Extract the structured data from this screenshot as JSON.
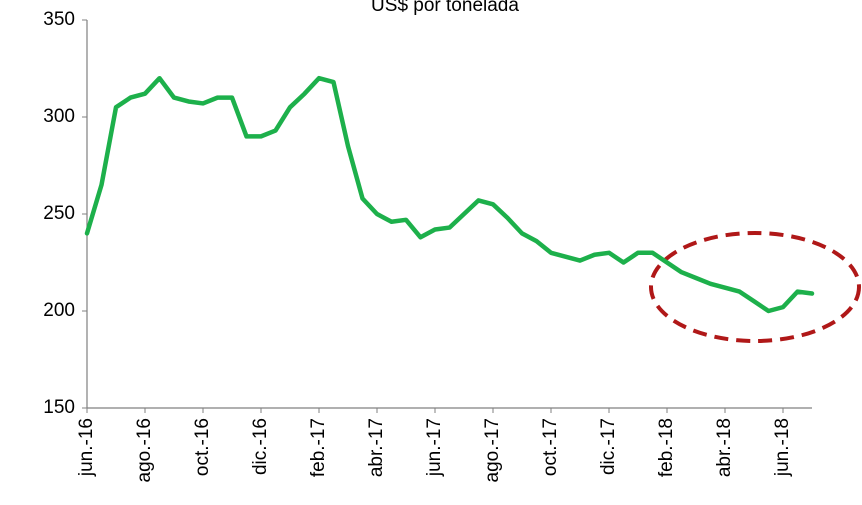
{
  "chart_data": {
    "type": "line",
    "title": "US$ por tonelada",
    "categories": [
      "jun.-16",
      null,
      null,
      null,
      "ago.-16",
      null,
      null,
      null,
      "oct.-16",
      null,
      null,
      null,
      "dic.-16",
      null,
      null,
      null,
      "feb.-17",
      null,
      null,
      null,
      "abr.-17",
      null,
      null,
      null,
      "jun.-17",
      null,
      null,
      null,
      "ago.-17",
      null,
      null,
      null,
      "oct.-17",
      null,
      null,
      null,
      "dic.-17",
      null,
      null,
      null,
      "feb.-18",
      null,
      null,
      null,
      "abr.-18",
      null,
      null,
      null,
      "jun.-18",
      null,
      null
    ],
    "series": [
      {
        "name": "US$ por tonelada",
        "color": "#1db04b",
        "values": [
          240,
          265,
          305,
          310,
          312,
          320,
          310,
          308,
          307,
          310,
          310,
          290,
          290,
          293,
          305,
          312,
          320,
          318,
          285,
          258,
          250,
          246,
          247,
          238,
          242,
          243,
          250,
          257,
          255,
          248,
          240,
          236,
          230,
          228,
          226,
          229,
          230,
          225,
          230,
          230,
          225,
          220,
          217,
          214,
          212,
          210,
          205,
          200,
          202,
          210,
          209
        ]
      }
    ],
    "ylim": [
      150,
      350
    ],
    "yticks": [
      150,
      200,
      250,
      300,
      350
    ],
    "grid": false
  }
}
